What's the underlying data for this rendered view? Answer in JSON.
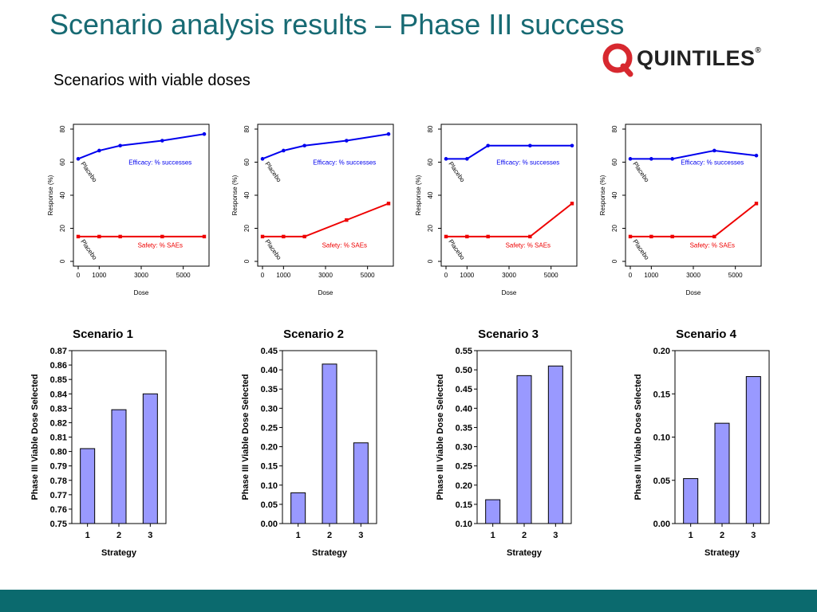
{
  "slide": {
    "title": "Scenario analysis results – Phase III success",
    "subtitle": "Scenarios with viable doses",
    "logo": {
      "text": "QUINTILES",
      "reg": "®",
      "color": "#d7282f"
    }
  },
  "colors": {
    "efficacy": "#0000ee",
    "safety": "#ee0000",
    "bar_fill": "#9999ff",
    "footer": "#0b6a6e"
  },
  "chart_data": [
    {
      "type": "line",
      "xlabel": "Dose",
      "ylabel": "Response (%)",
      "xticks": [
        "0",
        "1000",
        "3000",
        "5000"
      ],
      "xtick_values": [
        0,
        1000,
        3000,
        5000
      ],
      "yticks": [
        "0",
        "20",
        "40",
        "60",
        "80"
      ],
      "ylim": [
        0,
        80
      ],
      "xlim": [
        0,
        6000
      ],
      "annotations": [
        "Placebo",
        "Placebo"
      ],
      "series": [
        {
          "name": "Efficacy: % successes",
          "x": [
            0,
            1000,
            2000,
            4000,
            6000
          ],
          "values": [
            62,
            67,
            70,
            73,
            77
          ]
        },
        {
          "name": "Safety: % SAEs",
          "x": [
            0,
            1000,
            2000,
            4000,
            6000
          ],
          "values": [
            15,
            15,
            15,
            15,
            15
          ]
        }
      ]
    },
    {
      "type": "line",
      "xlabel": "Dose",
      "ylabel": "Response (%)",
      "xticks": [
        "0",
        "1000",
        "3000",
        "5000"
      ],
      "xtick_values": [
        0,
        1000,
        3000,
        5000
      ],
      "yticks": [
        "0",
        "20",
        "40",
        "60",
        "80"
      ],
      "ylim": [
        0,
        80
      ],
      "xlim": [
        0,
        6000
      ],
      "annotations": [
        "Placebo",
        "Placebo"
      ],
      "series": [
        {
          "name": "Efficacy: % successes",
          "x": [
            0,
            1000,
            2000,
            4000,
            6000
          ],
          "values": [
            62,
            67,
            70,
            73,
            77
          ]
        },
        {
          "name": "Safety: % SAEs",
          "x": [
            0,
            1000,
            2000,
            4000,
            6000
          ],
          "values": [
            15,
            15,
            15,
            25,
            35
          ]
        }
      ]
    },
    {
      "type": "line",
      "xlabel": "Dose",
      "ylabel": "Response (%)",
      "xticks": [
        "0",
        "1000",
        "3000",
        "5000"
      ],
      "xtick_values": [
        0,
        1000,
        3000,
        5000
      ],
      "yticks": [
        "0",
        "20",
        "40",
        "60",
        "80"
      ],
      "ylim": [
        0,
        80
      ],
      "xlim": [
        0,
        6000
      ],
      "annotations": [
        "Placebo",
        "Placebo"
      ],
      "series": [
        {
          "name": "Efficacy: % successes",
          "x": [
            0,
            1000,
            2000,
            4000,
            6000
          ],
          "values": [
            62,
            62,
            70,
            70,
            70
          ]
        },
        {
          "name": "Safety: % SAEs",
          "x": [
            0,
            1000,
            2000,
            4000,
            6000
          ],
          "values": [
            15,
            15,
            15,
            15,
            35
          ]
        }
      ]
    },
    {
      "type": "line",
      "xlabel": "Dose",
      "ylabel": "Response (%)",
      "xticks": [
        "0",
        "1000",
        "3000",
        "5000"
      ],
      "xtick_values": [
        0,
        1000,
        3000,
        5000
      ],
      "yticks": [
        "0",
        "20",
        "40",
        "60",
        "80"
      ],
      "ylim": [
        0,
        80
      ],
      "xlim": [
        0,
        6000
      ],
      "annotations": [
        "Placebo",
        "Placebo"
      ],
      "series": [
        {
          "name": "Efficacy: % successes",
          "x": [
            0,
            1000,
            2000,
            4000,
            6000
          ],
          "values": [
            62,
            62,
            62,
            67,
            64
          ]
        },
        {
          "name": "Safety: % SAEs",
          "x": [
            0,
            1000,
            2000,
            4000,
            6000
          ],
          "values": [
            15,
            15,
            15,
            15,
            35
          ]
        }
      ]
    },
    {
      "type": "bar",
      "title": "Scenario 1",
      "xlabel": "Strategy",
      "ylabel": "Phase III Viable Dose Selected",
      "categories": [
        "1",
        "2",
        "3"
      ],
      "values": [
        0.802,
        0.829,
        0.84
      ],
      "ylim": [
        0.75,
        0.87
      ],
      "yticks": [
        "0.75",
        "0.76",
        "0.77",
        "0.78",
        "0.79",
        "0.80",
        "0.81",
        "0.82",
        "0.83",
        "0.84",
        "0.85",
        "0.86",
        "0.87"
      ],
      "ytick_values": [
        0.75,
        0.76,
        0.77,
        0.78,
        0.79,
        0.8,
        0.81,
        0.82,
        0.83,
        0.84,
        0.85,
        0.86,
        0.87
      ]
    },
    {
      "type": "bar",
      "title": "Scenario 2",
      "xlabel": "Strategy",
      "ylabel": "Phase III Viable Dose Selected",
      "categories": [
        "1",
        "2",
        "3"
      ],
      "values": [
        0.08,
        0.415,
        0.21
      ],
      "ylim": [
        0,
        0.45
      ],
      "yticks": [
        "0.00",
        "0.05",
        "0.10",
        "0.15",
        "0.20",
        "0.25",
        "0.30",
        "0.35",
        "0.40",
        "0.45"
      ],
      "ytick_values": [
        0,
        0.05,
        0.1,
        0.15,
        0.2,
        0.25,
        0.3,
        0.35,
        0.4,
        0.45
      ]
    },
    {
      "type": "bar",
      "title": "Scenario 3",
      "xlabel": "Strategy",
      "ylabel": "Phase III Viable Dose Selected",
      "categories": [
        "1",
        "2",
        "3"
      ],
      "values": [
        0.162,
        0.485,
        0.51
      ],
      "ylim": [
        0.1,
        0.55
      ],
      "yticks": [
        "0.10",
        "0.15",
        "0.20",
        "0.25",
        "0.30",
        "0.35",
        "0.40",
        "0.45",
        "0.50",
        "0.55"
      ],
      "ytick_values": [
        0.1,
        0.15,
        0.2,
        0.25,
        0.3,
        0.35,
        0.4,
        0.45,
        0.5,
        0.55
      ]
    },
    {
      "type": "bar",
      "title": "Scenario 4",
      "xlabel": "Strategy",
      "ylabel": "Phase III Viable Dose Selected",
      "categories": [
        "1",
        "2",
        "3"
      ],
      "values": [
        0.052,
        0.116,
        0.17
      ],
      "ylim": [
        0,
        0.2
      ],
      "yticks": [
        "0.00",
        "0.05",
        "0.10",
        "0.15",
        "0.20"
      ],
      "ytick_values": [
        0,
        0.05,
        0.1,
        0.15,
        0.2
      ]
    }
  ]
}
